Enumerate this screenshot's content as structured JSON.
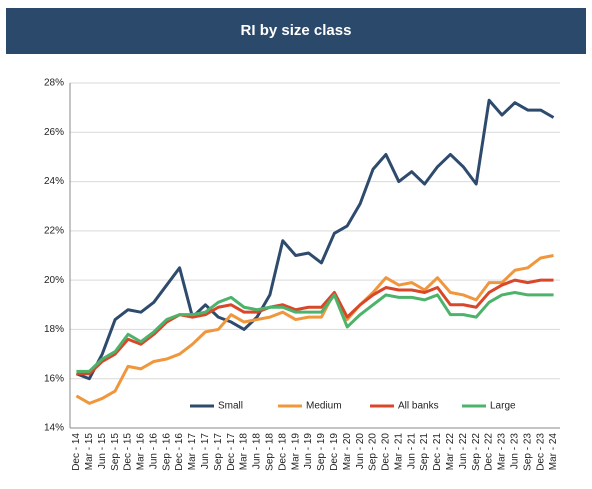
{
  "chart_data": {
    "type": "line",
    "title": "RI by size class",
    "categories": [
      "Dec - 14",
      "Mar - 15",
      "Jun - 15",
      "Sep - 15",
      "Dec - 15",
      "Mar - 16",
      "Jun - 16",
      "Sep - 16",
      "Dec - 16",
      "Mar - 17",
      "Jun - 17",
      "Sep - 17",
      "Dec - 17",
      "Mar - 18",
      "Jun - 18",
      "Sep - 18",
      "Dec - 18",
      "Mar - 19",
      "Jun - 19",
      "Sep - 19",
      "Dec - 19",
      "Mar - 20",
      "Jun - 20",
      "Sep - 20",
      "Dec - 20",
      "Mar - 21",
      "Jun - 21",
      "Sep - 21",
      "Dec - 21",
      "Mar - 22",
      "Jun - 22",
      "Sep - 22",
      "Dec - 22",
      "Mar - 23",
      "Jun - 23",
      "Sep - 23",
      "Dec - 23",
      "Mar - 24"
    ],
    "series": [
      {
        "name": "Small",
        "color": "#2e4b6d",
        "values": [
          16.2,
          16.0,
          17.0,
          18.4,
          18.8,
          18.7,
          19.1,
          19.8,
          20.5,
          18.5,
          19.0,
          18.5,
          18.3,
          18.0,
          18.5,
          19.4,
          21.6,
          21.0,
          21.1,
          20.7,
          21.9,
          22.2,
          23.1,
          24.5,
          25.1,
          24.0,
          24.4,
          23.9,
          24.6,
          25.1,
          24.6,
          23.9,
          27.3,
          26.7,
          27.2,
          26.9,
          26.9,
          26.6
        ]
      },
      {
        "name": "Medium",
        "color": "#f0963c",
        "values": [
          15.3,
          15.0,
          15.2,
          15.5,
          16.5,
          16.4,
          16.7,
          16.8,
          17.0,
          17.4,
          17.9,
          18.0,
          18.6,
          18.3,
          18.4,
          18.5,
          18.7,
          18.4,
          18.5,
          18.5,
          19.5,
          18.4,
          19.0,
          19.5,
          20.1,
          19.8,
          19.9,
          19.6,
          20.1,
          19.5,
          19.4,
          19.2,
          19.9,
          19.9,
          20.4,
          20.5,
          20.9,
          21.0
        ]
      },
      {
        "name": "All banks",
        "color": "#d9472b",
        "values": [
          16.2,
          16.2,
          16.7,
          17.0,
          17.6,
          17.4,
          17.8,
          18.3,
          18.6,
          18.5,
          18.6,
          18.9,
          19.0,
          18.7,
          18.7,
          18.9,
          19.0,
          18.8,
          18.9,
          18.9,
          19.5,
          18.5,
          19.0,
          19.4,
          19.7,
          19.6,
          19.6,
          19.5,
          19.7,
          19.0,
          19.0,
          18.9,
          19.5,
          19.8,
          20.0,
          19.9,
          20.0,
          20.0
        ]
      },
      {
        "name": "Large",
        "color": "#4db36b",
        "values": [
          16.3,
          16.3,
          16.8,
          17.1,
          17.8,
          17.5,
          17.9,
          18.4,
          18.6,
          18.6,
          18.7,
          19.1,
          19.3,
          18.9,
          18.8,
          18.9,
          18.9,
          18.7,
          18.7,
          18.7,
          19.4,
          18.1,
          18.6,
          19.0,
          19.4,
          19.3,
          19.3,
          19.2,
          19.4,
          18.6,
          18.6,
          18.5,
          19.1,
          19.4,
          19.5,
          19.4,
          19.4,
          19.4
        ]
      }
    ],
    "ylim": [
      14,
      28
    ],
    "yticks": [
      {
        "value": 14,
        "label": "14%"
      },
      {
        "value": 16,
        "label": "16%"
      },
      {
        "value": 18,
        "label": "18%"
      },
      {
        "value": 20,
        "label": "20%"
      },
      {
        "value": 22,
        "label": "22%"
      },
      {
        "value": 24,
        "label": "24%"
      },
      {
        "value": 26,
        "label": "26%"
      },
      {
        "value": 28,
        "label": "28%"
      }
    ],
    "grid": true
  }
}
